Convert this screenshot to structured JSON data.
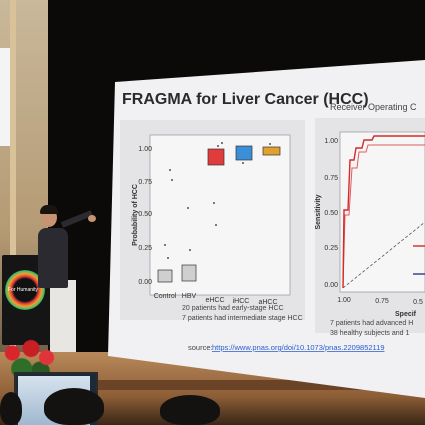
{
  "slide": {
    "title": "FRAGMA for Liver Cancer (HCC)",
    "right_title": "Receiver Operating C",
    "source_prefix": "source: ",
    "source_link": "https://www.pnas.org/doi/10.1073/pnas.2209852119"
  },
  "left_plot": {
    "ylabel": "Probability of HCC",
    "yticks": [
      "1.00",
      "0.75",
      "0.50",
      "0.25",
      "0.00"
    ],
    "categories": [
      "Control",
      "HBV",
      "eHCC",
      "iHCC",
      "aHCC"
    ],
    "notes": [
      "20 patients had early-stage HCC",
      "7 patients had intermediate stage HCC"
    ]
  },
  "right_plot": {
    "ylabel": "Sensitivity",
    "xlabel": "Specif",
    "yticks": [
      "1.00",
      "0.75",
      "0.50",
      "0.25",
      "0.00"
    ],
    "xticks": [
      "1.00",
      "0.75",
      "0.5"
    ],
    "notes": [
      "7 patients had advanced H",
      "38 healthy subjects and 1"
    ]
  },
  "podium": {
    "text": "For Humanity"
  },
  "colors": {
    "box_ehcc": "#e23b3b",
    "box_ihcc": "#3a8fd6",
    "box_ahcc": "#e0a12f",
    "roc_line": "#d42a2a",
    "link": "#2a5bd0"
  }
}
